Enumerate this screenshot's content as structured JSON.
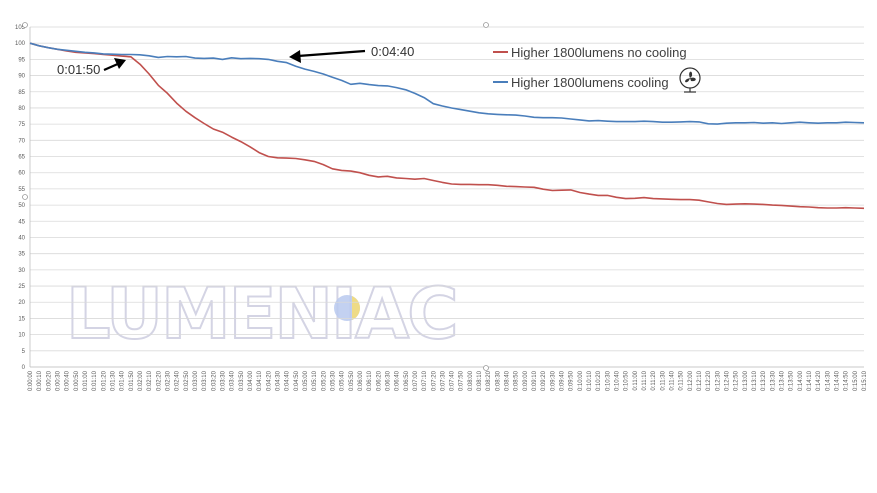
{
  "chart_data": {
    "type": "line",
    "ylim": [
      0,
      105
    ],
    "y_ticks": [
      0,
      5,
      10,
      15,
      20,
      25,
      30,
      35,
      40,
      45,
      50,
      55,
      60,
      65,
      70,
      75,
      80,
      85,
      90,
      95,
      100,
      105
    ],
    "x": [
      "0:00:00",
      "0:00:10",
      "0:00:20",
      "0:00:30",
      "0:00:40",
      "0:00:50",
      "0:01:00",
      "0:01:10",
      "0:01:20",
      "0:01:30",
      "0:01:40",
      "0:01:50",
      "0:02:00",
      "0:02:10",
      "0:02:20",
      "0:02:30",
      "0:02:40",
      "0:02:50",
      "0:03:00",
      "0:03:10",
      "0:03:20",
      "0:03:30",
      "0:03:40",
      "0:03:50",
      "0:04:00",
      "0:04:10",
      "0:04:20",
      "0:04:30",
      "0:04:40",
      "0:04:50",
      "0:05:00",
      "0:05:10",
      "0:05:20",
      "0:05:30",
      "0:05:40",
      "0:05:50",
      "0:06:00",
      "0:06:10",
      "0:06:20",
      "0:06:30",
      "0:06:40",
      "0:06:50",
      "0:07:00",
      "0:07:10",
      "0:07:20",
      "0:07:30",
      "0:07:40",
      "0:07:50",
      "0:08:00",
      "0:08:10",
      "0:08:20",
      "0:08:30",
      "0:08:40",
      "0:08:50",
      "0:09:00",
      "0:09:10",
      "0:09:20",
      "0:09:30",
      "0:09:40",
      "0:09:50",
      "0:10:00",
      "0:10:10",
      "0:10:20",
      "0:10:30",
      "0:10:40",
      "0:10:50",
      "0:11:00",
      "0:11:10",
      "0:11:20",
      "0:11:30",
      "0:11:40",
      "0:11:50",
      "0:12:00",
      "0:12:10",
      "0:12:20",
      "0:12:30",
      "0:12:40",
      "0:12:50",
      "0:13:00",
      "0:13:10",
      "0:13:20",
      "0:13:30",
      "0:13:40",
      "0:13:50",
      "0:14:00",
      "0:14:10",
      "0:14:20",
      "0:14:30",
      "0:14:40",
      "0:14:50",
      "0:15:00",
      "0:15:10"
    ],
    "series": [
      {
        "name": "Higher 1800lumens no cooling",
        "color": "#c0504d",
        "values": [
          100,
          99.2,
          98.6,
          98.1,
          97.6,
          97.2,
          97.0,
          96.8,
          96.5,
          96.3,
          96.0,
          95.8,
          93.5,
          90.5,
          87.0,
          84.5,
          81.5,
          79.0,
          77.0,
          75.2,
          73.5,
          72.5,
          71.0,
          69.6,
          68.0,
          66.2,
          65.0,
          64.6,
          64.5,
          64.4,
          64.0,
          63.5,
          62.5,
          61.2,
          60.7,
          60.5,
          60.0,
          59.2,
          58.7,
          58.9,
          58.4,
          58.2,
          58.0,
          58.2,
          57.6,
          57.0,
          56.5,
          56.4,
          56.4,
          56.3,
          56.3,
          56.1,
          55.8,
          55.7,
          55.6,
          55.5,
          54.9,
          54.5,
          54.6,
          54.7,
          53.9,
          53.4,
          53.0,
          53.0,
          52.4,
          52.0,
          52.1,
          52.3,
          52.0,
          51.9,
          51.8,
          51.7,
          51.7,
          51.5,
          51.0,
          50.5,
          50.2,
          50.3,
          50.4,
          50.3,
          50.2,
          50.0,
          49.9,
          49.7,
          49.5,
          49.4,
          49.2,
          49.1,
          49.1,
          49.2,
          49.1,
          49.0
        ]
      },
      {
        "name": "Higher 1800lumens cooling",
        "color": "#4a7ebb",
        "values": [
          100,
          99.2,
          98.6,
          98.1,
          97.8,
          97.5,
          97.2,
          97.0,
          96.7,
          96.6,
          96.5,
          96.5,
          96.4,
          96.1,
          95.6,
          95.9,
          95.8,
          95.9,
          95.4,
          95.3,
          95.4,
          95.0,
          95.5,
          95.2,
          95.3,
          95.2,
          95.0,
          94.4,
          94.0,
          92.9,
          92.0,
          91.3,
          90.5,
          89.5,
          88.5,
          87.3,
          87.6,
          87.2,
          86.9,
          86.8,
          86.3,
          85.6,
          84.5,
          83.2,
          81.3,
          80.6,
          80.0,
          79.5,
          79.0,
          78.5,
          78.2,
          78.0,
          77.9,
          77.8,
          77.5,
          77.1,
          77.0,
          77.0,
          76.9,
          76.6,
          76.3,
          76.0,
          76.1,
          75.9,
          75.8,
          75.8,
          75.8,
          75.9,
          75.8,
          75.6,
          75.6,
          75.7,
          75.8,
          75.7,
          75.1,
          75.0,
          75.3,
          75.4,
          75.4,
          75.5,
          75.3,
          75.4,
          75.2,
          75.4,
          75.6,
          75.4,
          75.3,
          75.4,
          75.4,
          75.6,
          75.5,
          75.4
        ]
      }
    ],
    "legend": {
      "position": "top-right",
      "entries": [
        "Higher 1800lumens no cooling",
        "Higher 1800lumens cooling"
      ],
      "cooling_icon": "fan-icon"
    },
    "annotations": [
      {
        "text": "0:01:50",
        "target_x": "0:01:50"
      },
      {
        "text": "0:04:40",
        "target_x": "0:04:40"
      }
    ],
    "watermark": "LUMENIAC",
    "gridlines": true
  }
}
